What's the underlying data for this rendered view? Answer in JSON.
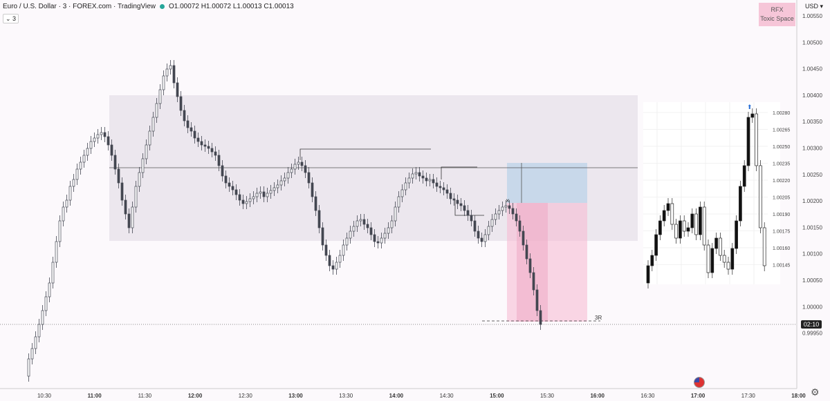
{
  "header": {
    "symbol": "Euro / U.S. Dollar · 3 · FOREX.com · TradingView",
    "ohlc": "O1.00072 H1.00072 L1.00013 C1.00013",
    "indicator_badge": "3"
  },
  "watermark": {
    "line1": "RFX",
    "line2": "Toxic Space"
  },
  "currency": "USD",
  "current_price_label": "02:10",
  "risk_reward_label": "3R",
  "stop_marker": "×",
  "axis_icon": "gear-icon",
  "colors": {
    "bull": "#ffffff",
    "bear": "#434651",
    "zone": "#ece7ee",
    "reward": "#bcd3e8",
    "risk": "#f6bcd3",
    "background": "#fcf9fc"
  },
  "chart_data": {
    "type": "candlestick",
    "yticks": [
      "1.00550",
      "1.00500",
      "1.00450",
      "1.00400",
      "1.00350",
      "1.00300",
      "1.00250",
      "1.00200",
      "1.00150",
      "1.00100",
      "1.00050",
      "1.00000",
      "0.99950"
    ],
    "xticks": [
      "10:30",
      "11:00",
      "11:30",
      "12:00",
      "12:30",
      "13:00",
      "13:30",
      "14:00",
      "14:30",
      "15:00",
      "15:30",
      "16:00",
      "16:30",
      "17:00",
      "17:30",
      "18:00"
    ],
    "ylim": [
      0.99905,
      1.00575
    ]
  },
  "inset_chart": {
    "yticks": [
      "1.00280",
      "1.00265",
      "1.00250",
      "1.00235",
      "1.00220",
      "1.00205",
      "1.00190",
      "1.00175",
      "1.00160",
      "1.00145"
    ]
  }
}
